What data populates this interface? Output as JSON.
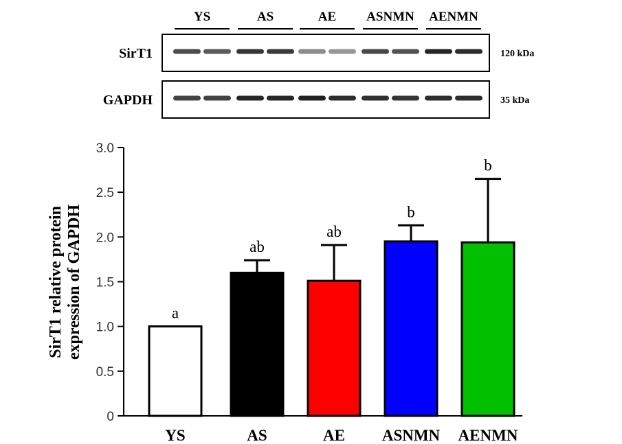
{
  "blot": {
    "lane_groups": [
      "YS",
      "AS",
      "AE",
      "ASNMN",
      "AENMN"
    ],
    "rows": [
      {
        "label": "SirT1",
        "kda": "120 kDa",
        "band_intensity": [
          0.78,
          0.72,
          0.88,
          0.86,
          0.5,
          0.45,
          0.8,
          0.75,
          0.95,
          0.92
        ]
      },
      {
        "label": "GAPDH",
        "kda": "35 kDa",
        "band_intensity": [
          0.82,
          0.82,
          0.95,
          0.95,
          0.97,
          0.92,
          0.9,
          0.88,
          0.92,
          0.92
        ]
      }
    ]
  },
  "chart_data": {
    "type": "bar",
    "categories": [
      "YS",
      "AS",
      "AE",
      "ASNMN",
      "AENMN"
    ],
    "values": [
      1.0,
      1.6,
      1.51,
      1.95,
      1.94
    ],
    "errors": [
      0,
      0.14,
      0.4,
      0.18,
      0.71
    ],
    "significance": [
      "a",
      "ab",
      "ab",
      "b",
      "b"
    ],
    "colors": [
      "#ffffff",
      "#000000",
      "#ff0000",
      "#0000ff",
      "#00c000"
    ],
    "xlabel": "",
    "ylabel": "SirT1 relative protein expression of GAPDH",
    "ylabel_lines": [
      "SirT1 relative protein",
      "expression of GAPDH"
    ],
    "ylim": [
      0,
      3.0
    ],
    "yticks": [
      0,
      0.5,
      1.0,
      1.5,
      2.0,
      2.5,
      3.0
    ],
    "ytick_labels": [
      "0",
      "0.5",
      "1.0",
      "1.5",
      "2.0",
      "2.5",
      "3.0"
    ],
    "grid": false,
    "legend": "none"
  }
}
